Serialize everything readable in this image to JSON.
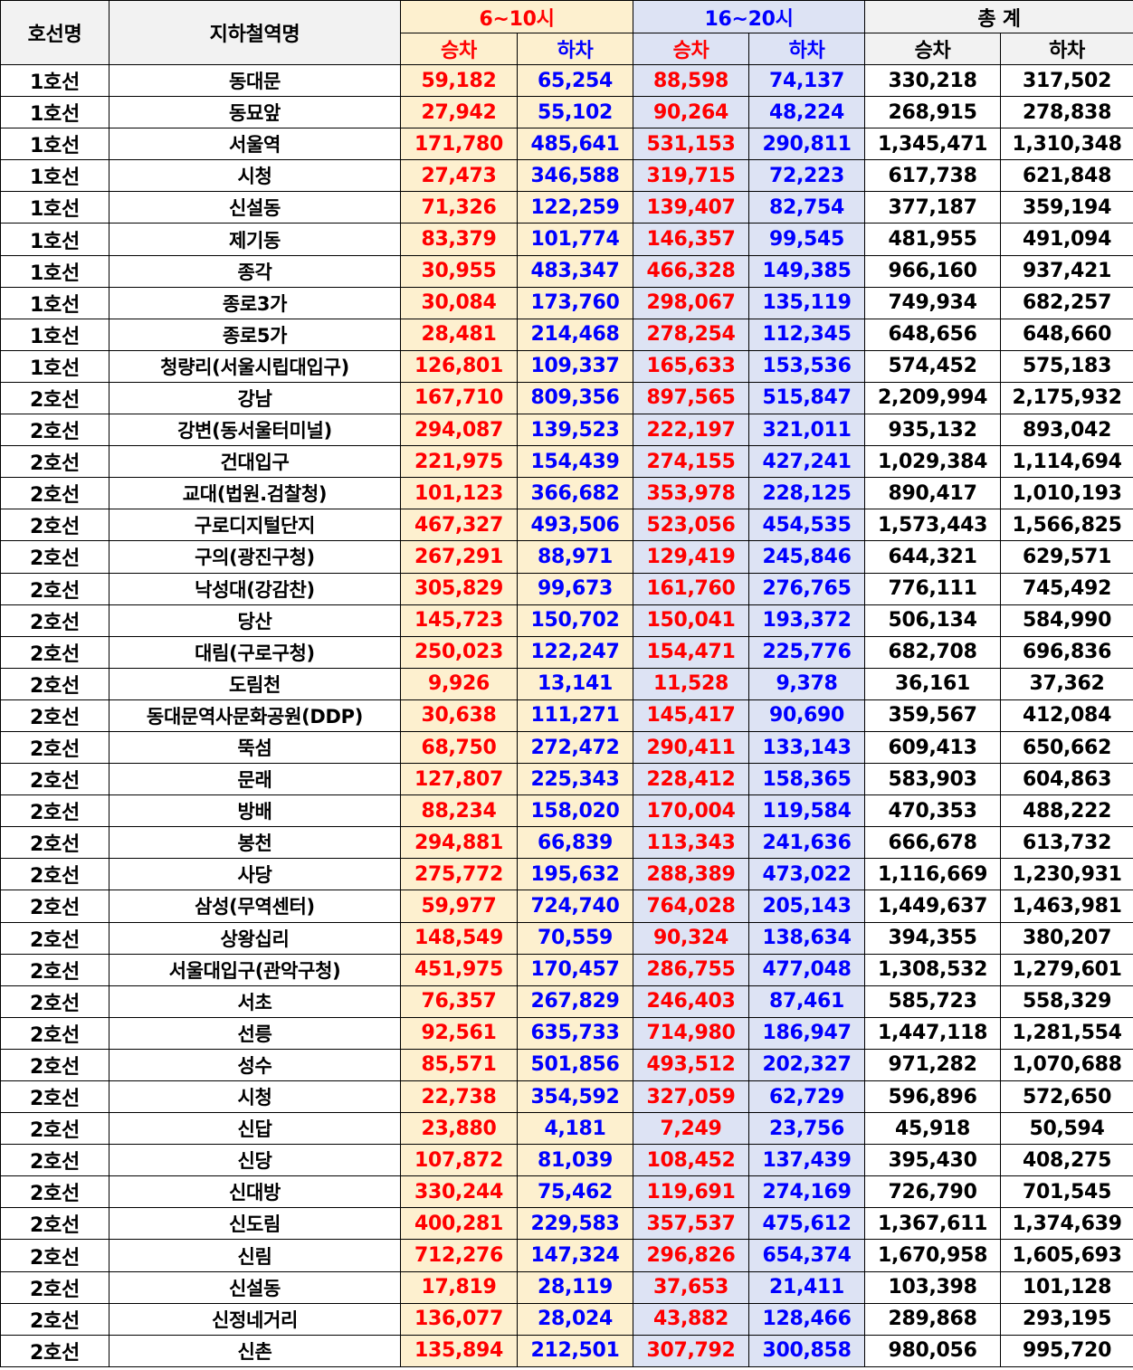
{
  "headers": {
    "line": "호선명",
    "station": "지하철역명",
    "morning": "6~10시",
    "evening": "16~20시",
    "total": "총 계",
    "board": "승차",
    "alight": "하차"
  },
  "rows": [
    [
      "1호선",
      "동대문",
      "59,182",
      "65,254",
      "88,598",
      "74,137",
      "330,218",
      "317,502"
    ],
    [
      "1호선",
      "동묘앞",
      "27,942",
      "55,102",
      "90,264",
      "48,224",
      "268,915",
      "278,838"
    ],
    [
      "1호선",
      "서울역",
      "171,780",
      "485,641",
      "531,153",
      "290,811",
      "1,345,471",
      "1,310,348"
    ],
    [
      "1호선",
      "시청",
      "27,473",
      "346,588",
      "319,715",
      "72,223",
      "617,738",
      "621,848"
    ],
    [
      "1호선",
      "신설동",
      "71,326",
      "122,259",
      "139,407",
      "82,754",
      "377,187",
      "359,194"
    ],
    [
      "1호선",
      "제기동",
      "83,379",
      "101,774",
      "146,357",
      "99,545",
      "481,955",
      "491,094"
    ],
    [
      "1호선",
      "종각",
      "30,955",
      "483,347",
      "466,328",
      "149,385",
      "966,160",
      "937,421"
    ],
    [
      "1호선",
      "종로3가",
      "30,084",
      "173,760",
      "298,067",
      "135,119",
      "749,934",
      "682,257"
    ],
    [
      "1호선",
      "종로5가",
      "28,481",
      "214,468",
      "278,254",
      "112,345",
      "648,656",
      "648,660"
    ],
    [
      "1호선",
      "청량리(서울시립대입구)",
      "126,801",
      "109,337",
      "165,633",
      "153,536",
      "574,452",
      "575,183"
    ],
    [
      "2호선",
      "강남",
      "167,710",
      "809,356",
      "897,565",
      "515,847",
      "2,209,994",
      "2,175,932"
    ],
    [
      "2호선",
      "강변(동서울터미널)",
      "294,087",
      "139,523",
      "222,197",
      "321,011",
      "935,132",
      "893,042"
    ],
    [
      "2호선",
      "건대입구",
      "221,975",
      "154,439",
      "274,155",
      "427,241",
      "1,029,384",
      "1,114,694"
    ],
    [
      "2호선",
      "교대(법원.검찰청)",
      "101,123",
      "366,682",
      "353,978",
      "228,125",
      "890,417",
      "1,010,193"
    ],
    [
      "2호선",
      "구로디지털단지",
      "467,327",
      "493,506",
      "523,056",
      "454,535",
      "1,573,443",
      "1,566,825"
    ],
    [
      "2호선",
      "구의(광진구청)",
      "267,291",
      "88,971",
      "129,419",
      "245,846",
      "644,321",
      "629,571"
    ],
    [
      "2호선",
      "낙성대(강감찬)",
      "305,829",
      "99,673",
      "161,760",
      "276,765",
      "776,111",
      "745,492"
    ],
    [
      "2호선",
      "당산",
      "145,723",
      "150,702",
      "150,041",
      "193,372",
      "506,134",
      "584,990"
    ],
    [
      "2호선",
      "대림(구로구청)",
      "250,023",
      "122,247",
      "154,471",
      "225,776",
      "682,708",
      "696,836"
    ],
    [
      "2호선",
      "도림천",
      "9,926",
      "13,141",
      "11,528",
      "9,378",
      "36,161",
      "37,362"
    ],
    [
      "2호선",
      "동대문역사문화공원(DDP)",
      "30,638",
      "111,271",
      "145,417",
      "90,690",
      "359,567",
      "412,084"
    ],
    [
      "2호선",
      "뚝섬",
      "68,750",
      "272,472",
      "290,411",
      "133,143",
      "609,413",
      "650,662"
    ],
    [
      "2호선",
      "문래",
      "127,807",
      "225,343",
      "228,412",
      "158,365",
      "583,903",
      "604,863"
    ],
    [
      "2호선",
      "방배",
      "88,234",
      "158,020",
      "170,004",
      "119,584",
      "470,353",
      "488,222"
    ],
    [
      "2호선",
      "봉천",
      "294,881",
      "66,839",
      "113,343",
      "241,636",
      "666,678",
      "613,732"
    ],
    [
      "2호선",
      "사당",
      "275,772",
      "195,632",
      "288,389",
      "473,022",
      "1,116,669",
      "1,230,931"
    ],
    [
      "2호선",
      "삼성(무역센터)",
      "59,977",
      "724,740",
      "764,028",
      "205,143",
      "1,449,637",
      "1,463,981"
    ],
    [
      "2호선",
      "상왕십리",
      "148,549",
      "70,559",
      "90,324",
      "138,634",
      "394,355",
      "380,207"
    ],
    [
      "2호선",
      "서울대입구(관악구청)",
      "451,975",
      "170,457",
      "286,755",
      "477,048",
      "1,308,532",
      "1,279,601"
    ],
    [
      "2호선",
      "서초",
      "76,357",
      "267,829",
      "246,403",
      "87,461",
      "585,723",
      "558,329"
    ],
    [
      "2호선",
      "선릉",
      "92,561",
      "635,733",
      "714,980",
      "186,947",
      "1,447,118",
      "1,281,554"
    ],
    [
      "2호선",
      "성수",
      "85,571",
      "501,856",
      "493,512",
      "202,327",
      "971,282",
      "1,070,688"
    ],
    [
      "2호선",
      "시청",
      "22,738",
      "354,592",
      "327,059",
      "62,729",
      "596,896",
      "572,650"
    ],
    [
      "2호선",
      "신답",
      "23,880",
      "4,181",
      "7,249",
      "23,756",
      "45,918",
      "50,594"
    ],
    [
      "2호선",
      "신당",
      "107,872",
      "81,039",
      "108,452",
      "137,439",
      "395,430",
      "408,275"
    ],
    [
      "2호선",
      "신대방",
      "330,244",
      "75,462",
      "119,691",
      "274,169",
      "726,790",
      "701,545"
    ],
    [
      "2호선",
      "신도림",
      "400,281",
      "229,583",
      "357,537",
      "475,612",
      "1,367,611",
      "1,374,639"
    ],
    [
      "2호선",
      "신림",
      "712,276",
      "147,324",
      "296,826",
      "654,374",
      "1,670,958",
      "1,605,693"
    ],
    [
      "2호선",
      "신설동",
      "17,819",
      "28,119",
      "37,653",
      "21,411",
      "103,398",
      "101,128"
    ],
    [
      "2호선",
      "신정네거리",
      "136,077",
      "28,024",
      "43,882",
      "128,466",
      "289,868",
      "293,195"
    ],
    [
      "2호선",
      "신촌",
      "135,894",
      "212,501",
      "307,792",
      "300,858",
      "980,056",
      "995,720"
    ]
  ],
  "colors": {
    "morning_bg": "#fdf0cf",
    "evening_bg": "#dde3f4",
    "header_bg": "#f2f2f2",
    "board_text": "#ff0000",
    "alight_text": "#0000ff"
  }
}
